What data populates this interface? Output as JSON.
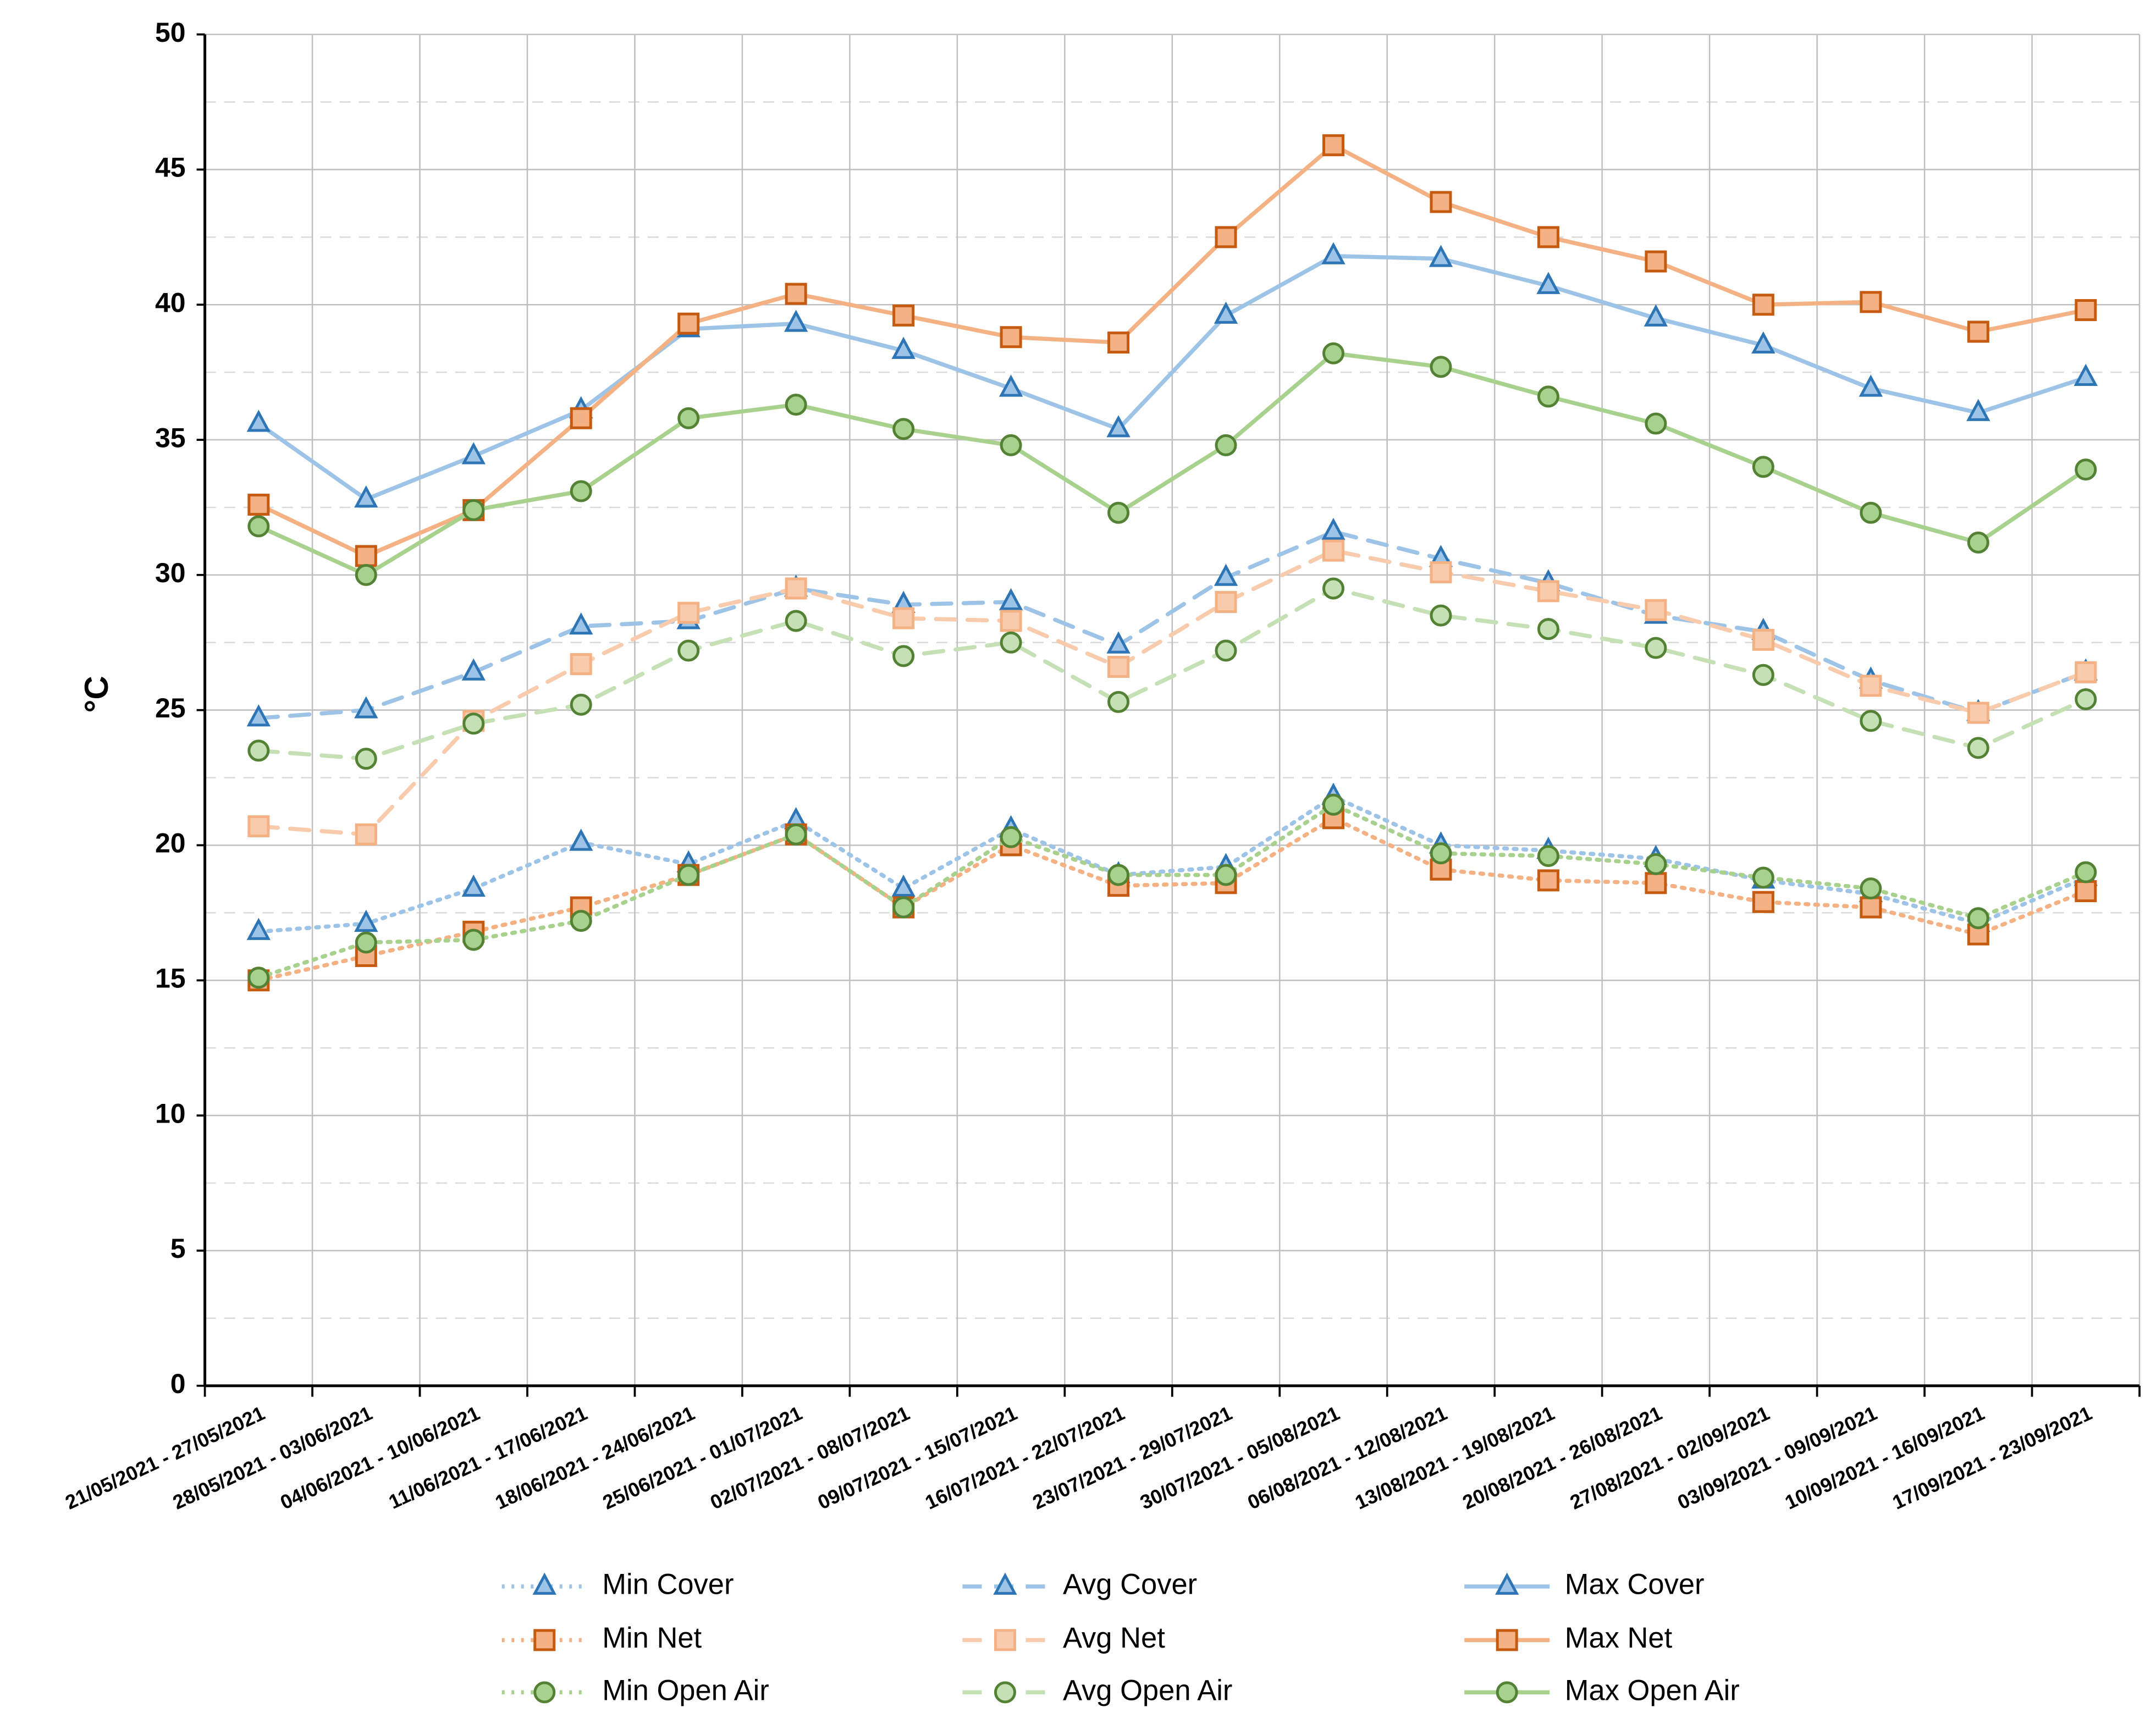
{
  "chart_data": {
    "type": "line",
    "y_label": "°C",
    "categories": [
      "21/05/2021 - 27/05/2021",
      "28/05/2021 - 03/06/2021",
      "04/06/2021 - 10/06/2021",
      "11/06/2021 - 17/06/2021",
      "18/06/2021 - 24/06/2021",
      "25/06/2021 - 01/07/2021",
      "02/07/2021 - 08/07/2021",
      "09/07/2021 - 15/07/2021",
      "16/07/2021 - 22/07/2021",
      "23/07/2021 - 29/07/2021",
      "30/07/2021 - 05/08/2021",
      "06/08/2021 - 12/08/2021",
      "13/08/2021 - 19/08/2021",
      "20/08/2021 - 26/08/2021",
      "27/08/2021 - 02/09/2021",
      "03/09/2021 - 09/09/2021",
      "10/09/2021 - 16/09/2021",
      "17/09/2021 - 23/09/2021"
    ],
    "ylim": [
      0,
      50
    ],
    "yticks": [
      0,
      5,
      10,
      15,
      20,
      25,
      30,
      35,
      40,
      45,
      50
    ],
    "grid": true,
    "minor_grid": true,
    "legend": "bottom",
    "series": [
      {
        "name": "Min Cover",
        "color": "#9dc3e6",
        "marker_color": "#2e75b6",
        "marker": "triangle",
        "dash": "dotted",
        "values": [
          16.8,
          17.1,
          18.4,
          20.1,
          19.3,
          20.9,
          18.4,
          20.6,
          18.9,
          19.2,
          21.8,
          20.0,
          19.8,
          19.5,
          18.7,
          18.2,
          17.1,
          18.8
        ]
      },
      {
        "name": "Avg Cover",
        "color": "#9dc3e6",
        "marker_color": "#2e75b6",
        "marker": "triangle",
        "dash": "dashed",
        "values": [
          24.7,
          25.0,
          26.4,
          28.1,
          28.3,
          29.5,
          28.9,
          29.0,
          27.4,
          29.9,
          31.6,
          30.6,
          29.7,
          28.5,
          27.9,
          26.1,
          24.9,
          26.4
        ]
      },
      {
        "name": "Max Cover",
        "color": "#9dc3e6",
        "marker_color": "#2e75b6",
        "marker": "triangle",
        "dash": "solid",
        "values": [
          35.6,
          32.8,
          34.4,
          36.1,
          39.1,
          39.3,
          38.3,
          36.9,
          35.4,
          39.6,
          41.8,
          41.7,
          40.7,
          39.5,
          38.5,
          36.9,
          36.0,
          37.3
        ]
      },
      {
        "name": "Min Net",
        "color": "#f4b183",
        "marker_color": "#c55a11",
        "marker": "square",
        "dash": "dotted",
        "values": [
          15.0,
          15.9,
          16.8,
          17.7,
          18.9,
          20.4,
          17.7,
          20.0,
          18.5,
          18.6,
          21.0,
          19.1,
          18.7,
          18.6,
          17.9,
          17.7,
          16.7,
          18.3
        ]
      },
      {
        "name": "Avg Net",
        "color": "#f8cbad",
        "marker_color": "#f4b183",
        "marker": "square",
        "dash": "dashed",
        "values": [
          20.7,
          20.4,
          24.6,
          26.7,
          28.6,
          29.5,
          28.4,
          28.3,
          26.6,
          29.0,
          30.9,
          30.1,
          29.4,
          28.7,
          27.6,
          25.9,
          24.9,
          26.4
        ]
      },
      {
        "name": "Max Net",
        "color": "#f4b183",
        "marker_color": "#c55a11",
        "marker": "square",
        "dash": "solid",
        "values": [
          32.6,
          30.7,
          32.4,
          35.8,
          39.3,
          40.4,
          39.6,
          38.8,
          38.6,
          42.5,
          45.9,
          43.8,
          42.5,
          41.6,
          40.0,
          40.1,
          39.0,
          39.8
        ]
      },
      {
        "name": "Min Open Air",
        "color": "#a9d18e",
        "marker_color": "#548235",
        "marker": "circle",
        "dash": "dotted",
        "values": [
          15.1,
          16.4,
          16.5,
          17.2,
          18.9,
          20.4,
          17.7,
          20.3,
          18.9,
          18.9,
          21.5,
          19.7,
          19.6,
          19.3,
          18.8,
          18.4,
          17.3,
          19.0
        ]
      },
      {
        "name": "Avg Open Air",
        "color": "#c5e0b4",
        "marker_color": "#548235",
        "marker": "circle",
        "dash": "dashed",
        "values": [
          23.5,
          23.2,
          24.5,
          25.2,
          27.2,
          28.3,
          27.0,
          27.5,
          25.3,
          27.2,
          29.5,
          28.5,
          28.0,
          27.3,
          26.3,
          24.6,
          23.6,
          25.4
        ]
      },
      {
        "name": "Max Open Air",
        "color": "#a9d18e",
        "marker_color": "#548235",
        "marker": "circle",
        "dash": "solid",
        "values": [
          31.8,
          30.0,
          32.4,
          33.1,
          35.8,
          36.3,
          35.4,
          34.8,
          32.3,
          34.8,
          38.2,
          37.7,
          36.6,
          35.6,
          34.0,
          32.3,
          31.2,
          33.9
        ]
      }
    ]
  }
}
